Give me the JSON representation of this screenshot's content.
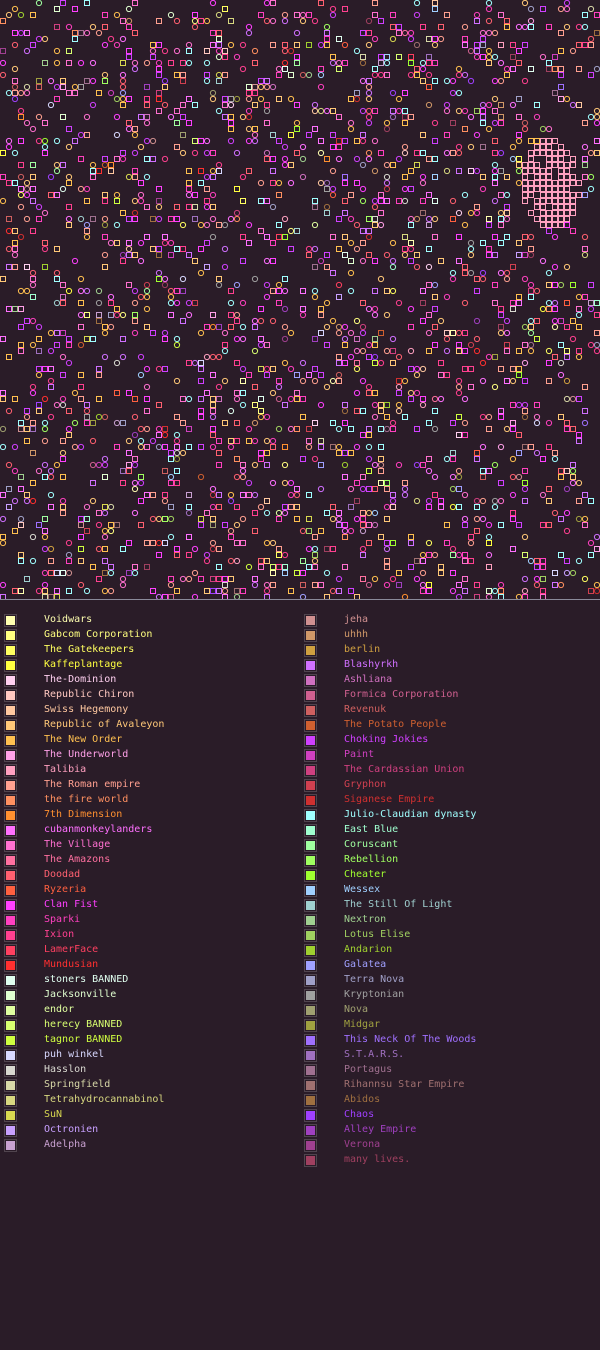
{
  "map": {
    "background": "#2a1c28",
    "divider_color": "#8a8a9a"
  },
  "legend": {
    "left": [
      {
        "name": "Voidwars",
        "color": "#ffffb0"
      },
      {
        "name": "Gabcom Corporation",
        "color": "#ffff80"
      },
      {
        "name": "The Gatekeepers",
        "color": "#ffff60"
      },
      {
        "name": "Kaffeplantage",
        "color": "#ffff40"
      },
      {
        "name": "The-Dominion",
        "color": "#ffd0f0"
      },
      {
        "name": "Republic Chiron",
        "color": "#ffc8c0"
      },
      {
        "name": "Swiss Hegemony",
        "color": "#ffc8a0"
      },
      {
        "name": "Republic of Avaleyon",
        "color": "#ffc878"
      },
      {
        "name": "The New Order",
        "color": "#ffc050"
      },
      {
        "name": "The Underworld",
        "color": "#ffa0e8"
      },
      {
        "name": "Talibia",
        "color": "#ffa0c0"
      },
      {
        "name": "The Roman empire",
        "color": "#ffa090"
      },
      {
        "name": "the fire world",
        "color": "#ff9060"
      },
      {
        "name": "7th Dimension",
        "color": "#ff9030"
      },
      {
        "name": "cubanmonkeylanders",
        "color": "#ff70ff"
      },
      {
        "name": "The Village",
        "color": "#ff70d0"
      },
      {
        "name": "The Amazons",
        "color": "#ff70a0"
      },
      {
        "name": "Doodad",
        "color": "#ff6070"
      },
      {
        "name": "Ryzeria",
        "color": "#ff6040"
      },
      {
        "name": "Clan Fist",
        "color": "#ff40ff"
      },
      {
        "name": "Sparki",
        "color": "#ff40c0"
      },
      {
        "name": "Ixion",
        "color": "#ff4090"
      },
      {
        "name": "LamerFace",
        "color": "#ff4060"
      },
      {
        "name": "Mundusian",
        "color": "#ff3030"
      },
      {
        "name": "stoners BANNED",
        "color": "#e0fff0"
      },
      {
        "name": "Jacksonville",
        "color": "#e0ffd0"
      },
      {
        "name": "endor",
        "color": "#e0ffa0"
      },
      {
        "name": "herecy BANNED",
        "color": "#d8ff70"
      },
      {
        "name": "tagnor BANNED",
        "color": "#d0ff40"
      },
      {
        "name": "puh winkel",
        "color": "#d8d8ff"
      },
      {
        "name": "Hasslon",
        "color": "#d8d8d0"
      },
      {
        "name": "Springfield",
        "color": "#d8d8a8"
      },
      {
        "name": "Tetrahydrocannabinol",
        "color": "#d8d880"
      },
      {
        "name": "SuN",
        "color": "#d8d850"
      },
      {
        "name": "Octronien",
        "color": "#c8a0ff"
      },
      {
        "name": "Adelpha",
        "color": "#c8a0d0"
      }
    ],
    "right": [
      {
        "name": "jeha",
        "color": "#d09090"
      },
      {
        "name": "uhhh",
        "color": "#d09868"
      },
      {
        "name": "berlin",
        "color": "#d0a040"
      },
      {
        "name": "Blashyrkh",
        "color": "#d070ff"
      },
      {
        "name": "Ashliana",
        "color": "#d070c0"
      },
      {
        "name": "Formica Corporation",
        "color": "#d06090"
      },
      {
        "name": "Revenuk",
        "color": "#d06060"
      },
      {
        "name": "The Potato People",
        "color": "#d06030"
      },
      {
        "name": "Choking Jokies",
        "color": "#d040ff"
      },
      {
        "name": "Paint",
        "color": "#d040c0"
      },
      {
        "name": "The Cardassian Union",
        "color": "#d04080"
      },
      {
        "name": "Gryphon",
        "color": "#d04050"
      },
      {
        "name": "Siganese Empire",
        "color": "#d03030"
      },
      {
        "name": "Julio-Claudian dynasty",
        "color": "#a0ffff"
      },
      {
        "name": "East Blue",
        "color": "#a0ffd0"
      },
      {
        "name": "Coruscant",
        "color": "#a0ffa0"
      },
      {
        "name": "Rebellion",
        "color": "#a0ff60"
      },
      {
        "name": "Cheater",
        "color": "#a0ff30"
      },
      {
        "name": "Wessex",
        "color": "#a0d0ff"
      },
      {
        "name": "The Still Of Light",
        "color": "#a0d0d0"
      },
      {
        "name": "Nextron",
        "color": "#a0d090"
      },
      {
        "name": "Lotus Elise",
        "color": "#a0d060"
      },
      {
        "name": "Andarion",
        "color": "#a0d030"
      },
      {
        "name": "Galatea",
        "color": "#a0a0ff"
      },
      {
        "name": "Terra Nova",
        "color": "#a0a0c8"
      },
      {
        "name": "Kryptonian",
        "color": "#a0a0a0"
      },
      {
        "name": "Nova",
        "color": "#a0a070"
      },
      {
        "name": "Midgar",
        "color": "#a0a040"
      },
      {
        "name": "This Neck Of The Woods",
        "color": "#a070ff"
      },
      {
        "name": "S.T.A.R.S.",
        "color": "#a070c0"
      },
      {
        "name": "Portagus",
        "color": "#a07090"
      },
      {
        "name": "Rihannsu Star Empire",
        "color": "#a07070"
      },
      {
        "name": "Abidos",
        "color": "#a07040"
      },
      {
        "name": "Chaos",
        "color": "#a040ff"
      },
      {
        "name": "Alley Empire",
        "color": "#a040c0"
      },
      {
        "name": "Verona",
        "color": "#a04090"
      },
      {
        "name": "many lives.",
        "color": "#a04060"
      }
    ]
  }
}
